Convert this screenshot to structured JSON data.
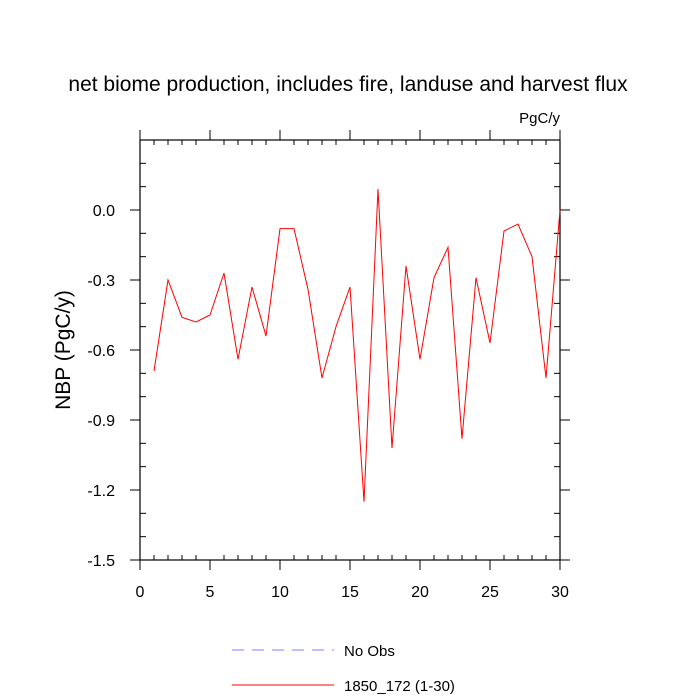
{
  "chart_data": {
    "type": "line",
    "title": "net biome production, includes fire, landuse and harvest flux",
    "units": "PgC/y",
    "ylabel": "NBP  (PgC/y)",
    "xlabel": "",
    "xlim": [
      0,
      30
    ],
    "ylim": [
      -1.5,
      0.3
    ],
    "x_major_ticks": [
      0,
      5,
      10,
      15,
      20,
      25,
      30
    ],
    "x_tick_labels": [
      "0",
      "5",
      "10",
      "15",
      "20",
      "25",
      "30"
    ],
    "y_major_ticks": [
      -1.5,
      -1.2,
      -0.9,
      -0.6,
      -0.3,
      0.0
    ],
    "y_tick_labels": [
      "-1.5",
      "-1.2",
      "-0.9",
      "-0.6",
      "-0.3",
      "0.0"
    ],
    "grid": false,
    "legend_position": "bottom-center",
    "series": [
      {
        "name": "1850_172 (1-30)",
        "color": "#ff0000",
        "style": "solid",
        "x": [
          1,
          2,
          3,
          4,
          5,
          6,
          7,
          8,
          9,
          10,
          11,
          12,
          13,
          14,
          15,
          16,
          17,
          18,
          19,
          20,
          21,
          22,
          23,
          24,
          25,
          26,
          27,
          28,
          29,
          30
        ],
        "values": [
          -0.69,
          -0.3,
          -0.46,
          -0.48,
          -0.45,
          -0.27,
          -0.64,
          -0.33,
          -0.54,
          -0.08,
          -0.08,
          -0.34,
          -0.72,
          -0.5,
          -0.33,
          -1.25,
          0.09,
          -1.02,
          -0.24,
          -0.64,
          -0.29,
          -0.16,
          -0.98,
          -0.29,
          -0.57,
          -0.09,
          -0.06,
          -0.2,
          -0.72,
          0.0
        ]
      }
    ],
    "legend": [
      {
        "label": "No Obs",
        "color": "#8080ff",
        "style": "dashed"
      },
      {
        "label": "1850_172 (1-30)",
        "color": "#ff0000",
        "style": "solid"
      }
    ]
  }
}
